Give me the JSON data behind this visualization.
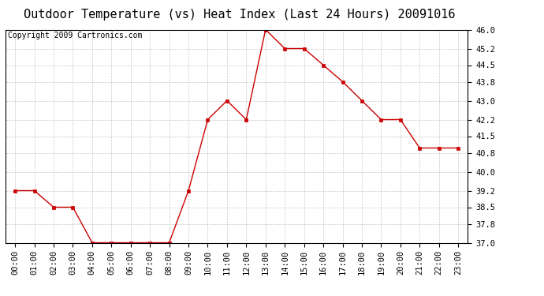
{
  "title": "Outdoor Temperature (vs) Heat Index (Last 24 Hours) 20091016",
  "copyright_text": "Copyright 2009 Cartronics.com",
  "x_labels": [
    "00:00",
    "01:00",
    "02:00",
    "03:00",
    "04:00",
    "05:00",
    "06:00",
    "07:00",
    "08:00",
    "09:00",
    "10:00",
    "11:00",
    "12:00",
    "13:00",
    "14:00",
    "15:00",
    "16:00",
    "17:00",
    "18:00",
    "19:00",
    "20:00",
    "21:00",
    "22:00",
    "23:00"
  ],
  "y_values": [
    39.2,
    39.2,
    38.5,
    38.5,
    37.0,
    37.0,
    37.0,
    37.0,
    37.0,
    39.2,
    42.2,
    43.0,
    42.2,
    46.0,
    45.2,
    45.2,
    44.5,
    43.8,
    43.0,
    42.2,
    42.2,
    41.0,
    41.0,
    41.0
  ],
  "y_ticks": [
    37.0,
    37.8,
    38.5,
    39.2,
    40.0,
    40.8,
    41.5,
    42.2,
    43.0,
    43.8,
    44.5,
    45.2,
    46.0
  ],
  "ylim": [
    37.0,
    46.0
  ],
  "line_color": "#cc0000",
  "marker": "s",
  "marker_size": 2.5,
  "marker_color": "#cc0000",
  "background_color": "#ffffff",
  "plot_bg_color": "#ffffff",
  "grid_color": "#c8c8c8",
  "title_fontsize": 11,
  "copyright_fontsize": 7,
  "tick_fontsize": 7.5
}
